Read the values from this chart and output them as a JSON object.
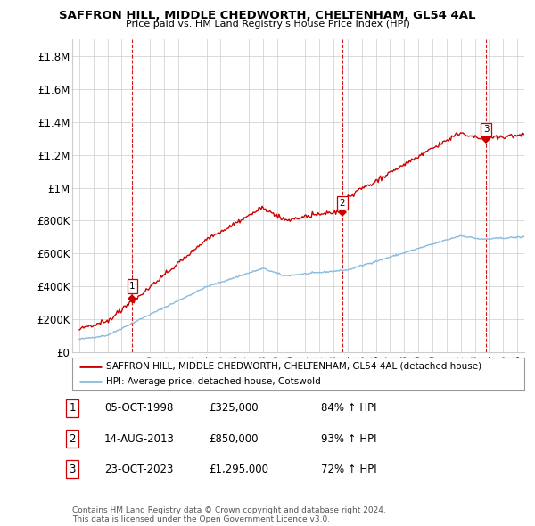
{
  "title": "SAFFRON HILL, MIDDLE CHEDWORTH, CHELTENHAM, GL54 4AL",
  "subtitle": "Price paid vs. HM Land Registry's House Price Index (HPI)",
  "xlim": [
    1994.5,
    2026.5
  ],
  "ylim": [
    0,
    1900000
  ],
  "yticks": [
    0,
    200000,
    400000,
    600000,
    800000,
    1000000,
    1200000,
    1400000,
    1600000,
    1800000
  ],
  "ytick_labels": [
    "£0",
    "£200K",
    "£400K",
    "£600K",
    "£800K",
    "£1M",
    "£1.2M",
    "£1.4M",
    "£1.6M",
    "£1.8M"
  ],
  "sale_years": [
    1998.76,
    2013.62,
    2023.81
  ],
  "sale_prices": [
    325000,
    850000,
    1295000
  ],
  "sale_labels": [
    "1",
    "2",
    "3"
  ],
  "hpi_line_color": "#88bbdd",
  "price_line_color": "#cc0000",
  "sale_marker_color": "#cc0000",
  "vline_color": "#cc0000",
  "background_color": "#ffffff",
  "grid_color": "#cccccc",
  "legend_entries": [
    "SAFFRON HILL, MIDDLE CHEDWORTH, CHELTENHAM, GL54 4AL (detached house)",
    "HPI: Average price, detached house, Cotswold"
  ],
  "table_rows": [
    [
      "1",
      "05-OCT-1998",
      "£325,000",
      "84% ↑ HPI"
    ],
    [
      "2",
      "14-AUG-2013",
      "£850,000",
      "93% ↑ HPI"
    ],
    [
      "3",
      "23-OCT-2023",
      "£1,295,000",
      "72% ↑ HPI"
    ]
  ],
  "footnote": "Contains HM Land Registry data © Crown copyright and database right 2024.\nThis data is licensed under the Open Government Licence v3.0."
}
